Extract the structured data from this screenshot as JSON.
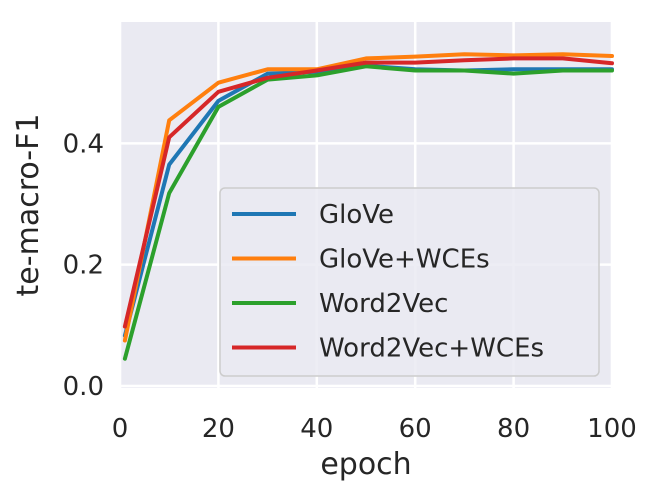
{
  "chart_data": {
    "type": "line",
    "title": "",
    "xlabel": "epoch",
    "ylabel": "te-macro-F1",
    "xlim": [
      0,
      100
    ],
    "ylim": [
      0,
      0.6
    ],
    "xticks": [
      0,
      20,
      40,
      60,
      80,
      100
    ],
    "xtick_labels": [
      "0",
      "20",
      "40",
      "60",
      "80",
      "100"
    ],
    "yticks": [
      0.0,
      0.2,
      0.4
    ],
    "ytick_labels": [
      "0.0",
      "0.2",
      "0.4"
    ],
    "grid": true,
    "legend_position": "lower-right",
    "x": [
      1,
      10,
      20,
      30,
      40,
      50,
      60,
      70,
      80,
      90,
      100
    ],
    "series": [
      {
        "name": "GloVe",
        "color": "#1f77b4",
        "values": [
          0.083,
          0.365,
          0.47,
          0.515,
          0.518,
          0.528,
          0.522,
          0.52,
          0.522,
          0.522,
          0.522
        ]
      },
      {
        "name": "GloVe+WCEs",
        "color": "#ff7f0e",
        "values": [
          0.075,
          0.438,
          0.5,
          0.522,
          0.522,
          0.54,
          0.543,
          0.547,
          0.545,
          0.547,
          0.544
        ]
      },
      {
        "name": "Word2Vec",
        "color": "#2ca02c",
        "values": [
          0.045,
          0.318,
          0.46,
          0.505,
          0.512,
          0.527,
          0.52,
          0.52,
          0.515,
          0.52,
          0.52
        ]
      },
      {
        "name": "Word2Vec+WCEs",
        "color": "#d62728",
        "values": [
          0.098,
          0.41,
          0.485,
          0.508,
          0.52,
          0.533,
          0.533,
          0.537,
          0.54,
          0.54,
          0.532
        ]
      }
    ]
  }
}
